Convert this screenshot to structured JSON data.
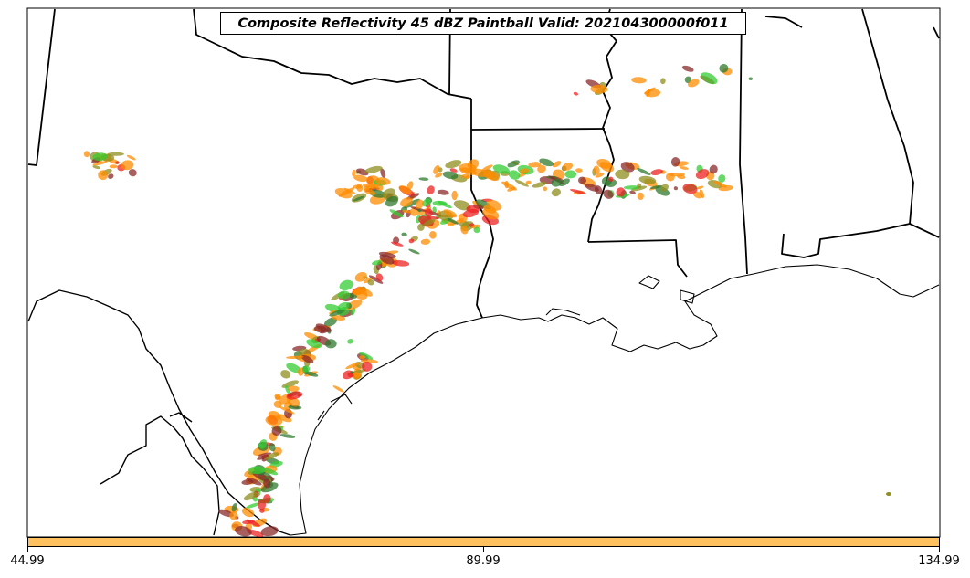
{
  "map": {
    "title": "Composite Reflectivity 45 dBZ Paintball Valid: 202104300000f011",
    "region": "Texas, Louisiana, Mississippi and Gulf of Mexico coast",
    "layers": [
      "state-borders",
      "coastline",
      "reflectivity-paintball"
    ],
    "colors": {
      "green": "#33cc33",
      "dark_green": "#2f7a2f",
      "olive": "#8f8f1f",
      "orange": "#ff8c00",
      "red": "#ee2222",
      "maroon": "#8b2a2a",
      "gray": "#666666",
      "colorbar_fill": "#ffc060",
      "background": "#ffffff",
      "lines": "#000000"
    }
  },
  "colorbar": {
    "ticks": [
      "44.99",
      "89.99",
      "134.99"
    ]
  }
}
